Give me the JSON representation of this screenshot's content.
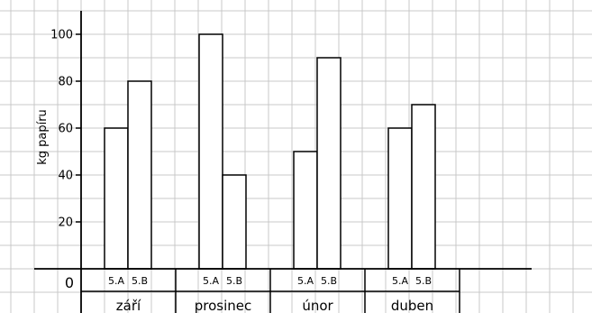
{
  "chart_data": {
    "type": "bar",
    "ylabel": "kg papíru",
    "zero_label": "0",
    "ylim": [
      0,
      110
    ],
    "yticks": [
      20,
      40,
      60,
      80,
      100
    ],
    "grid": true,
    "groups": [
      {
        "month": "září",
        "bars": [
          {
            "label": "5.A",
            "value": 60
          },
          {
            "label": "5.B",
            "value": 80
          }
        ]
      },
      {
        "month": "prosinec",
        "bars": [
          {
            "label": "5.A",
            "value": 100
          },
          {
            "label": "5.B",
            "value": 40
          }
        ]
      },
      {
        "month": "únor",
        "bars": [
          {
            "label": "5.A",
            "value": 50
          },
          {
            "label": "5.B",
            "value": 90
          }
        ]
      },
      {
        "month": "duben",
        "bars": [
          {
            "label": "5.A",
            "value": 60
          },
          {
            "label": "5.B",
            "value": 70
          }
        ]
      }
    ],
    "colors": {
      "bar_fill": "#ffffff",
      "bar_stroke": "#000000",
      "grid": "#c8c8c8",
      "axis": "#000000"
    }
  }
}
